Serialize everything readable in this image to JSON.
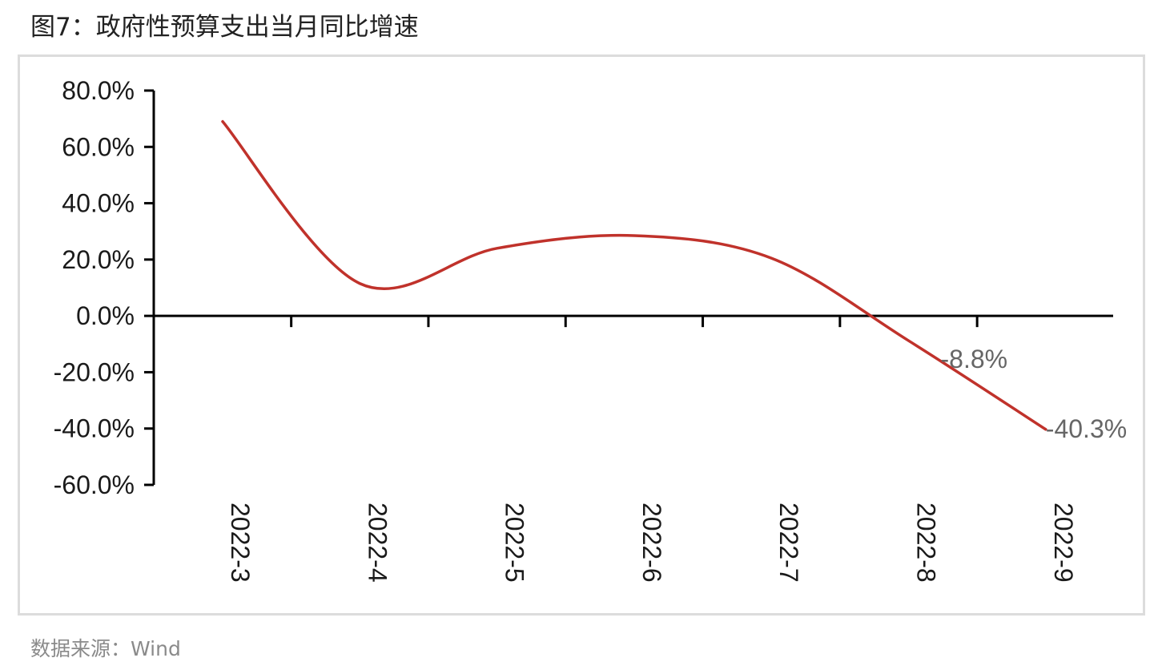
{
  "figure": {
    "title": "图7：政府性预算支出当月同比增速",
    "source": "数据来源：Wind"
  },
  "chart_data": {
    "type": "line",
    "title": "",
    "xlabel": "",
    "ylabel": "",
    "categories": [
      "2022-3",
      "2022-4",
      "2022-5",
      "2022-6",
      "2022-7",
      "2022-8",
      "2022-9"
    ],
    "series": [
      {
        "values": [
          69.0,
          11.5,
          24.0,
          28.5,
          20.5,
          -8.8,
          -40.3
        ],
        "color": "#c0322b"
      }
    ],
    "ylim": [
      -60,
      80
    ],
    "yticks": [
      80,
      60,
      40,
      20,
      0,
      -20,
      -40,
      -60
    ],
    "ytick_labels": [
      "80.0%",
      "60.0%",
      "40.0%",
      "20.0%",
      "0.0%",
      "-20.0%",
      "-40.0%",
      "-60.0%"
    ],
    "data_labels": [
      {
        "index": 5,
        "text": "-8.8%"
      },
      {
        "index": 6,
        "text": "-40.3%"
      }
    ],
    "grid": false,
    "legend": "none"
  }
}
